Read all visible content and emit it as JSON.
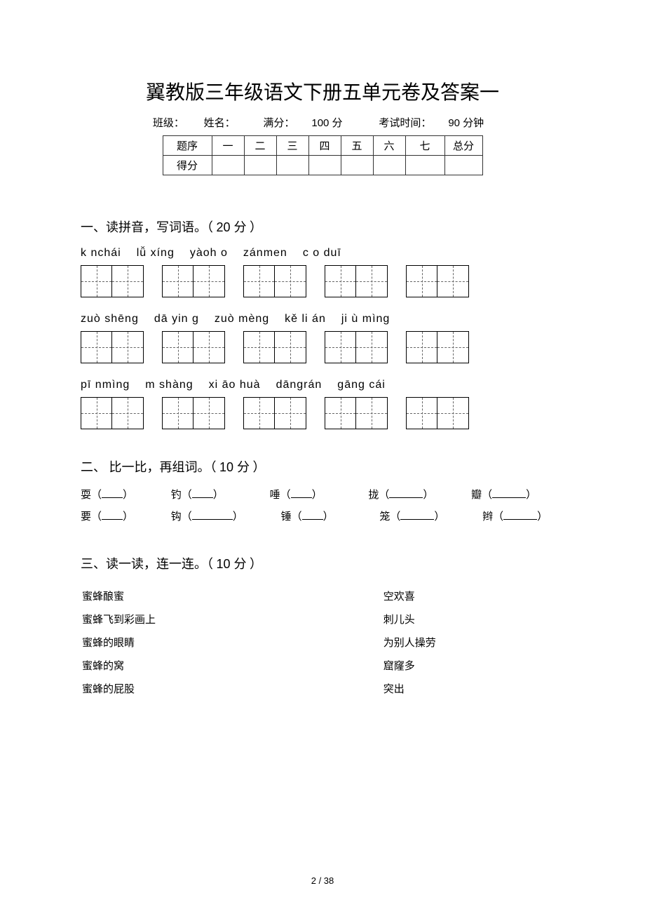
{
  "title": "翼教版三年级语文下册五单元卷及答案一",
  "meta": {
    "class_label": "班级：",
    "name_label": "姓名：",
    "full_label": "满分：",
    "full_value": "100 分",
    "time_label": "考试时间：",
    "time_value": "90 分钟"
  },
  "score_table": {
    "row1_label": "题序",
    "row2_label": "得分",
    "cols": [
      "一",
      "二",
      "三",
      "四",
      "五",
      "六",
      "七"
    ],
    "total_label": "总分"
  },
  "section1": {
    "heading_prefix": "一、读拼音，写词语。（",
    "points": "20 分",
    "heading_suffix": "）",
    "rows": [
      {
        "pinyin": [
          "k  nchái",
          "lǚ xíng",
          "yàoh  o",
          "zánmen",
          "c  o duī"
        ],
        "cells": [
          2,
          2,
          2,
          2,
          2
        ]
      },
      {
        "pinyin": [
          "zuò shēng",
          "dā yin g",
          "zuò mèng",
          "kě li án",
          "ji ù mìng"
        ],
        "cells": [
          2,
          2,
          2,
          2,
          2
        ]
      },
      {
        "pinyin": [
          "pī nmìng",
          "m  shàng",
          "xi āo huà",
          "dāngrán",
          "gāng cái"
        ],
        "cells": [
          2,
          2,
          2,
          2,
          2
        ]
      }
    ]
  },
  "section2": {
    "heading_prefix": "二、 比一比，再组词。（",
    "points": "10 分",
    "heading_suffix": "）",
    "line1": [
      "耍（",
      "）",
      "钓（",
      "）",
      "唾（",
      "）",
      "拢（",
      "）",
      "瓣（",
      "）"
    ],
    "line2": [
      "要（",
      "）",
      "钩（",
      "）",
      "锤（",
      "）",
      "笼（",
      "）",
      "辫（",
      "）"
    ]
  },
  "section3": {
    "heading_prefix": "三、读一读，连一连。（",
    "points": "10 分",
    "heading_suffix": "）",
    "pairs": [
      {
        "l": "蜜蜂酿蜜",
        "r": "空欢喜"
      },
      {
        "l": "蜜蜂飞到彩画上",
        "r": "刺儿头"
      },
      {
        "l": "蜜蜂的眼睛",
        "r": "为别人操劳"
      },
      {
        "l": "蜜蜂的窝",
        "r": "窟窿多"
      },
      {
        "l": "蜜蜂的屁股",
        "r": "突出"
      }
    ]
  },
  "page_number": "2 / 38"
}
